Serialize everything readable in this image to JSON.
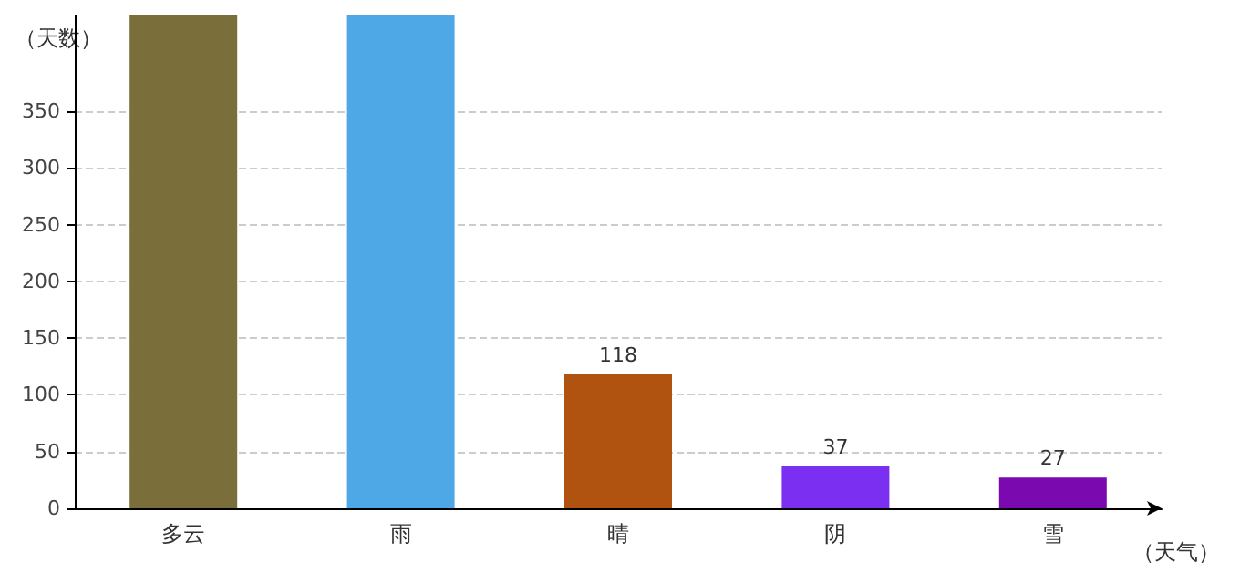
{
  "chart_data": {
    "type": "bar",
    "categories": [
      "多云",
      "雨",
      "晴",
      "阴",
      "雪"
    ],
    "values": [
      435,
      435,
      118,
      37,
      27
    ],
    "colors": [
      "#7a6e3a",
      "#4ea8e6",
      "#b05310",
      "#7b2ff0",
      "#7a0ab0"
    ],
    "value_labels": [
      null,
      null,
      "118",
      "37",
      "27"
    ],
    "xlabel": "（天气）",
    "ylabel": "（天数）",
    "ylim": [
      0,
      435
    ],
    "yticks": [
      0,
      50,
      100,
      150,
      200,
      250,
      300,
      350
    ],
    "grid": "y"
  }
}
